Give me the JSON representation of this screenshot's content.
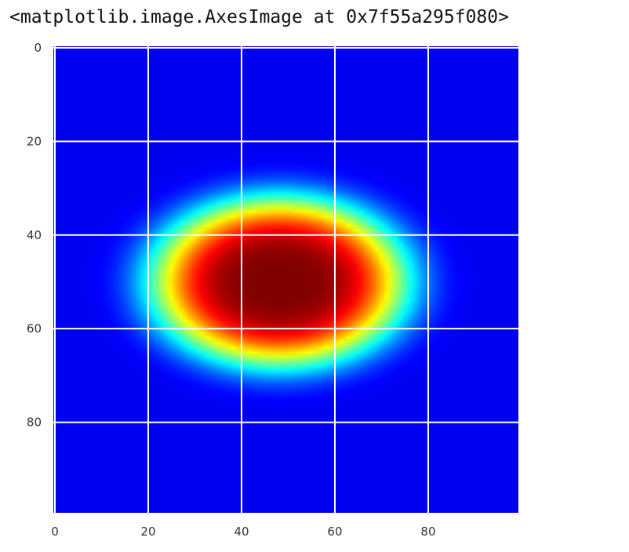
{
  "output_text": "<matplotlib.image.AxesImage at 0x7f55a295f080>",
  "colors": {
    "grid": "#ffffff",
    "background": "#ffffff",
    "axes_face": "#00008c"
  },
  "chart_data": {
    "type": "heatmap",
    "colormap": "jet",
    "image_shape": [
      100,
      100
    ],
    "x_ticks": [
      "0",
      "20",
      "40",
      "60",
      "80"
    ],
    "y_ticks": [
      "0",
      "20",
      "40",
      "60",
      "80"
    ],
    "xlim": [
      -0.5,
      99.5
    ],
    "ylim": [
      99.5,
      -0.5
    ],
    "grid": true,
    "blob": {
      "center_x": 48,
      "center_y": 50,
      "peak_value": 1.0,
      "background_value": 0.0
    }
  }
}
